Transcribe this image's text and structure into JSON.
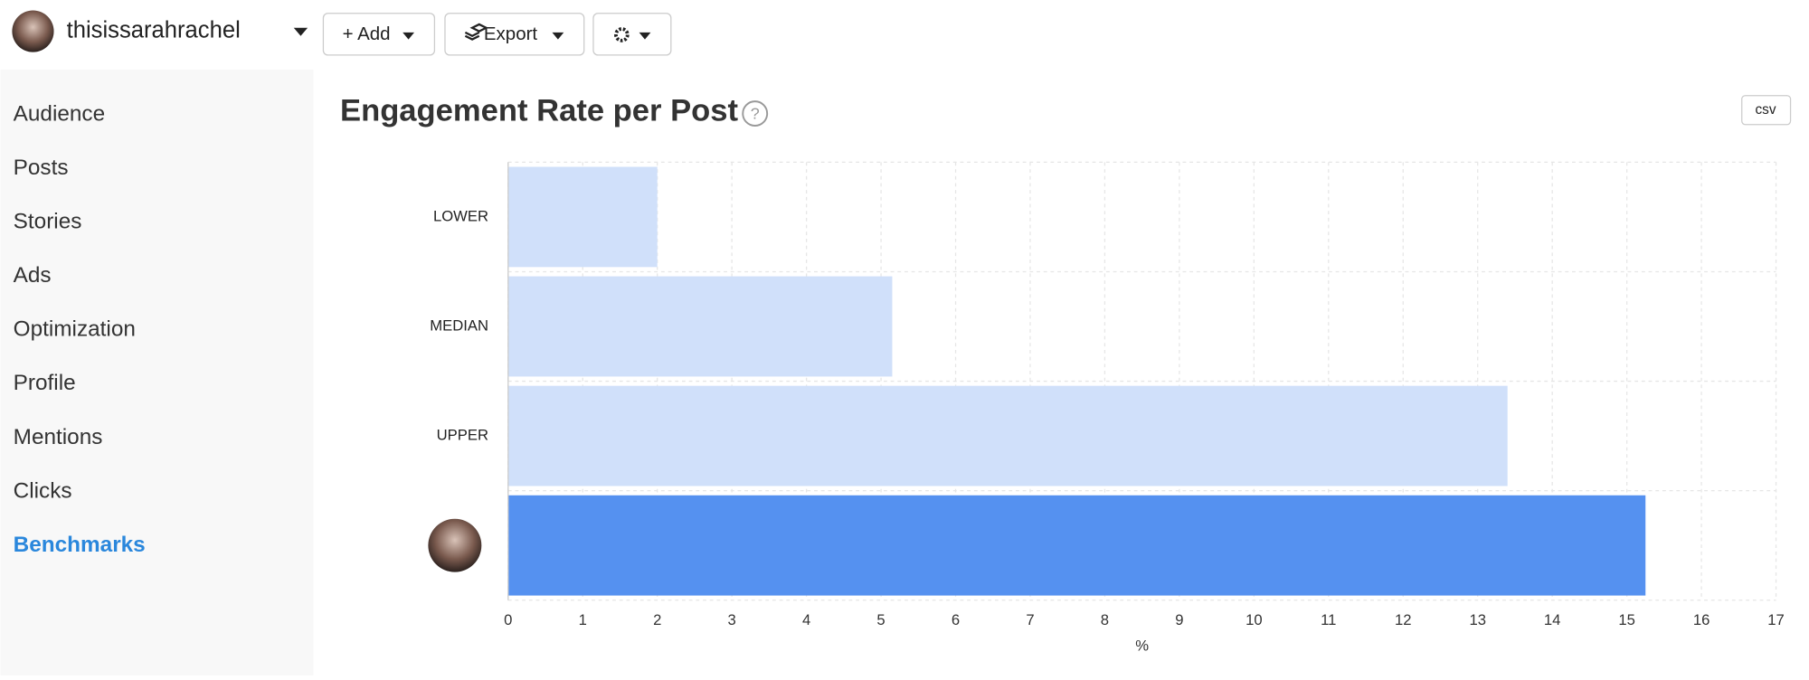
{
  "header": {
    "username": "thisissarahrachel",
    "buttons": [
      "+ Add",
      "Export"
    ]
  },
  "nav": {
    "items": [
      "Audience",
      "Posts",
      "Stories",
      "Ads",
      "Optimization",
      "Profile",
      "Mentions",
      "Clicks",
      "Benchmarks"
    ],
    "active": "Benchmarks"
  },
  "csv_button": "csv",
  "chart_data": {
    "type": "hbar",
    "title": "Engagement Rate per Post",
    "categories": [
      "LOWER",
      "MEDIAN",
      "UPPER",
      null
    ],
    "values": [
      2.0,
      5.15,
      13.4,
      15.25
    ],
    "colors": [
      "#d0e0fa",
      "#d0e0fa",
      "#d0e0fa",
      "#5591f0"
    ],
    "x_label": "%",
    "xlim": [
      0,
      17
    ],
    "xticks": [
      0,
      1,
      2,
      3,
      4,
      5,
      6,
      7,
      8,
      9,
      10,
      11,
      12,
      13,
      14,
      15,
      16,
      17
    ],
    "grid": true
  }
}
